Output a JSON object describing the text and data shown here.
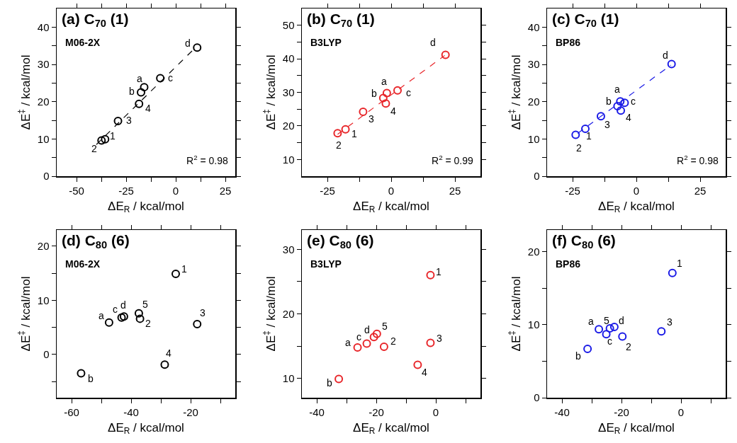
{
  "chart_data": [
    {
      "type": "scatter",
      "title": "(a) C$_{70}$ (1)",
      "subtitle": "M06-2X",
      "xlabel": "ΔE$_{R}$ / kcal/mol",
      "ylabel": "ΔE$^{‡}$ / kcal/mol",
      "marker": "circle",
      "grid": false,
      "xlim": [
        -60,
        30
      ],
      "xticks": [
        -50,
        {
          "value": -37.5,
          "label": null
        },
        -25,
        {
          "value": -12.5,
          "label": null
        },
        0,
        {
          "value": 12.5,
          "label": null
        },
        25
      ],
      "ylim": [
        0,
        45
      ],
      "yticks": [
        0,
        {
          "value": 5,
          "label": null
        },
        10,
        {
          "value": 15,
          "label": null
        },
        20,
        {
          "value": 25,
          "label": null
        },
        30,
        {
          "value": 35,
          "label": null
        },
        40
      ],
      "series": [
        {
          "color": "#000000",
          "x": [
            -35.6,
            -37.4,
            -29.1,
            -18.5,
            -15.9,
            -17.5,
            -7.8,
            10.8
          ],
          "values": [
            9.9,
            9.6,
            14.8,
            19.4,
            23.9,
            22.5,
            26.3,
            34.5
          ]
        },
        {
          "type": "line",
          "line_style": "dashed",
          "marker": "none",
          "color": "#000000",
          "x": [
            -40,
            10.5
          ],
          "values": [
            8.5,
            34.8
          ]
        }
      ],
      "annotations": [
        "R$^{2}$ = 0.98",
        {
          "text": "1",
          "x": -35.6,
          "y": 9.9
        },
        {
          "text": "2",
          "x": -37.4,
          "y": 9.6
        },
        {
          "text": "3",
          "x": -29.1,
          "y": 14.8
        },
        {
          "text": "4",
          "x": -18.5,
          "y": 19.4
        },
        {
          "text": "a",
          "x": -15.9,
          "y": 23.9
        },
        {
          "text": "b",
          "x": -17.5,
          "y": 22.5
        },
        {
          "text": "c",
          "x": -7.8,
          "y": 26.3
        },
        {
          "text": "d",
          "x": 10.8,
          "y": 34.5
        }
      ]
    },
    {
      "type": "scatter",
      "title": "(b) C$_{70}$ (1)",
      "subtitle": "B3LYP",
      "xlabel": "ΔE$_{R}$ / kcal/mol",
      "ylabel": "ΔE$^{‡}$ / kcal/mol",
      "marker": "circle",
      "grid": false,
      "xlim": [
        -35,
        35
      ],
      "xticks": [
        -25,
        {
          "value": -12.5,
          "label": null
        },
        0,
        {
          "value": 12.5,
          "label": null
        },
        25
      ],
      "ylim": [
        5,
        55
      ],
      "yticks": [
        10,
        {
          "value": 15,
          "label": null
        },
        20,
        {
          "value": 25,
          "label": null
        },
        30,
        {
          "value": 35,
          "label": null
        },
        40,
        {
          "value": 45,
          "label": null
        },
        50
      ],
      "series": [
        {
          "color": "#e8262a",
          "x": [
            -17.9,
            -21.0,
            -11.0,
            -2.1,
            -1.7,
            -3.1,
            2.5,
            21.3
          ],
          "values": [
            19.0,
            17.8,
            24.2,
            26.7,
            29.8,
            28.3,
            30.6,
            41.2
          ]
        },
        {
          "type": "line",
          "line_style": "dashed",
          "marker": "none",
          "color": "#e8262a",
          "x": [
            -21,
            21
          ],
          "values": [
            17.5,
            41
          ]
        }
      ],
      "annotations": [
        "R$^{2}$ = 0.99",
        {
          "text": "1",
          "x": -17.9,
          "y": 19.0
        },
        {
          "text": "2",
          "x": -21.0,
          "y": 17.8
        },
        {
          "text": "3",
          "x": -11.0,
          "y": 24.2
        },
        {
          "text": "4",
          "x": -2.1,
          "y": 26.7
        },
        {
          "text": "a",
          "x": -1.7,
          "y": 29.8
        },
        {
          "text": "b",
          "x": -3.1,
          "y": 28.3
        },
        {
          "text": "c",
          "x": 2.5,
          "y": 30.6
        },
        {
          "text": "d",
          "x": 21.3,
          "y": 41.2
        }
      ]
    },
    {
      "type": "scatter",
      "title": "(c) C$_{70}$ (1)",
      "subtitle": "BP86",
      "xlabel": "ΔE$_{R}$ / kcal/mol",
      "ylabel": "ΔE$^{‡}$ / kcal/mol",
      "marker": "circle",
      "grid": false,
      "xlim": [
        -35,
        35
      ],
      "xticks": [
        -25,
        {
          "value": -12.5,
          "label": null
        },
        0,
        {
          "value": 12.5,
          "label": null
        },
        25
      ],
      "ylim": [
        0,
        45
      ],
      "yticks": [
        0,
        {
          "value": 5,
          "label": null
        },
        10,
        {
          "value": 15,
          "label": null
        },
        20,
        {
          "value": 25,
          "label": null
        },
        30,
        {
          "value": 35,
          "label": null
        },
        40
      ],
      "series": [
        {
          "color": "#1a1ae6",
          "x": [
            -20.0,
            -23.8,
            -13.9,
            -6.1,
            -6.3,
            -7.4,
            -4.6,
            13.8
          ],
          "values": [
            12.7,
            11.1,
            16.1,
            17.6,
            20.1,
            18.8,
            19.7,
            30.1
          ]
        },
        {
          "type": "line",
          "line_style": "dashed",
          "marker": "none",
          "color": "#1a1ae6",
          "x": [
            -23,
            13.5
          ],
          "values": [
            11.5,
            29.8
          ]
        }
      ],
      "annotations": [
        "R$^{2}$ = 0.98",
        {
          "text": "1",
          "x": -20.0,
          "y": 12.7
        },
        {
          "text": "2",
          "x": -23.8,
          "y": 11.1
        },
        {
          "text": "3",
          "x": -13.9,
          "y": 16.1
        },
        {
          "text": "4",
          "x": -6.1,
          "y": 17.6
        },
        {
          "text": "a",
          "x": -6.3,
          "y": 20.1
        },
        {
          "text": "b",
          "x": -7.4,
          "y": 18.8
        },
        {
          "text": "c",
          "x": -4.6,
          "y": 19.7
        },
        {
          "text": "d",
          "x": 13.8,
          "y": 30.1
        }
      ]
    },
    {
      "type": "scatter",
      "title": "(d) C$_{80}$ (6)",
      "subtitle": "M06-2X",
      "xlabel": "ΔE$_{R}$ / kcal/mol",
      "ylabel": "ΔE$^{‡}$ / kcal/mol",
      "marker": "circle",
      "grid": false,
      "xlim": [
        -65,
        -5
      ],
      "xticks": [
        -60,
        {
          "value": -50,
          "label": null
        },
        -40,
        {
          "value": -30,
          "label": null
        },
        -20,
        {
          "value": -10,
          "label": null
        }
      ],
      "ylim": [
        -8,
        23
      ],
      "yticks": [
        {
          "value": -5,
          "label": null
        },
        0,
        {
          "value": 5,
          "label": null
        },
        10,
        {
          "value": 15,
          "label": null
        },
        20
      ],
      "series": [
        {
          "color": "#000000",
          "x": [
            -25.0,
            -37.0,
            -17.8,
            -28.7,
            -37.4,
            -47.4,
            -56.8,
            -43.2,
            -42.4
          ],
          "values": [
            14.9,
            6.6,
            5.6,
            -1.9,
            7.6,
            5.9,
            -3.5,
            6.8,
            7.0
          ]
        }
      ],
      "annotations": [
        {
          "text": "1",
          "x": -25.0,
          "y": 14.9
        },
        {
          "text": "2",
          "x": -37.0,
          "y": 6.6
        },
        {
          "text": "3",
          "x": -17.8,
          "y": 5.6
        },
        {
          "text": "4",
          "x": -28.7,
          "y": -1.9
        },
        {
          "text": "5",
          "x": -37.4,
          "y": 7.6
        },
        {
          "text": "a",
          "x": -47.4,
          "y": 5.9
        },
        {
          "text": "b",
          "x": -56.8,
          "y": -3.5
        },
        {
          "text": "c",
          "x": -43.2,
          "y": 6.8
        },
        {
          "text": "d",
          "x": -42.4,
          "y": 7.0
        }
      ]
    },
    {
      "type": "scatter",
      "title": "(e) C$_{80}$ (6)",
      "subtitle": "B3LYP",
      "xlabel": "ΔE$_{R}$ / kcal/mol",
      "ylabel": "ΔE$^{‡}$ / kcal/mol",
      "marker": "circle",
      "grid": false,
      "xlim": [
        -45,
        15
      ],
      "xticks": [
        -40,
        {
          "value": -30,
          "label": null
        },
        -20,
        {
          "value": -10,
          "label": null
        },
        0,
        {
          "value": 10,
          "label": null
        }
      ],
      "ylim": [
        7,
        33
      ],
      "yticks": [
        10,
        {
          "value": 15,
          "label": null
        },
        20,
        {
          "value": 25,
          "label": null
        },
        30
      ],
      "series": [
        {
          "color": "#e8262a",
          "x": [
            -1.8,
            -17.4,
            -1.8,
            -6.1,
            -19.8,
            -26.3,
            -32.6,
            -23.2,
            -20.8
          ],
          "values": [
            26.0,
            14.9,
            15.5,
            12.1,
            16.9,
            14.8,
            9.9,
            15.4,
            16.4
          ]
        }
      ],
      "annotations": [
        {
          "text": "1",
          "x": -1.8,
          "y": 26.0
        },
        {
          "text": "2",
          "x": -17.4,
          "y": 14.9
        },
        {
          "text": "3",
          "x": -1.8,
          "y": 15.5
        },
        {
          "text": "4",
          "x": -6.1,
          "y": 12.1
        },
        {
          "text": "5",
          "x": -19.8,
          "y": 16.9
        },
        {
          "text": "a",
          "x": -26.3,
          "y": 14.8
        },
        {
          "text": "b",
          "x": -32.6,
          "y": 9.9
        },
        {
          "text": "c",
          "x": -23.2,
          "y": 15.4
        },
        {
          "text": "d",
          "x": -20.8,
          "y": 16.4
        }
      ]
    },
    {
      "type": "scatter",
      "title": "(f) C$_{80}$ (6)",
      "subtitle": "BP86",
      "xlabel": "ΔE$_{R}$ / kcal/mol",
      "ylabel": "ΔE$^{‡}$ / kcal/mol",
      "marker": "circle",
      "grid": false,
      "xlim": [
        -45,
        15
      ],
      "xticks": [
        -40,
        {
          "value": -30,
          "label": null
        },
        -20,
        {
          "value": -10,
          "label": null
        },
        0,
        {
          "value": 10,
          "label": null
        }
      ],
      "ylim": [
        0,
        23
      ],
      "yticks": [
        0,
        {
          "value": 5,
          "label": null
        },
        10,
        {
          "value": 15,
          "label": null
        },
        20
      ],
      "series": [
        {
          "color": "#1a1ae6",
          "x": [
            -2.9,
            -19.7,
            -6.6,
            -23.9,
            -27.6,
            -31.4,
            -25.1,
            -22.4
          ],
          "values": [
            17.1,
            8.4,
            9.1,
            9.5,
            9.4,
            6.7,
            8.7,
            9.7
          ]
        }
      ],
      "annotations": [
        {
          "text": "1",
          "x": -2.9,
          "y": 17.1
        },
        {
          "text": "2",
          "x": -19.7,
          "y": 8.4
        },
        {
          "text": "3",
          "x": -6.6,
          "y": 9.1
        },
        {
          "text": "5",
          "x": -23.9,
          "y": 9.5
        },
        {
          "text": "a",
          "x": -27.6,
          "y": 9.4
        },
        {
          "text": "b",
          "x": -31.4,
          "y": 6.7
        },
        {
          "text": "c",
          "x": -25.1,
          "y": 8.7
        },
        {
          "text": "d",
          "x": -22.4,
          "y": 9.7
        }
      ]
    }
  ]
}
